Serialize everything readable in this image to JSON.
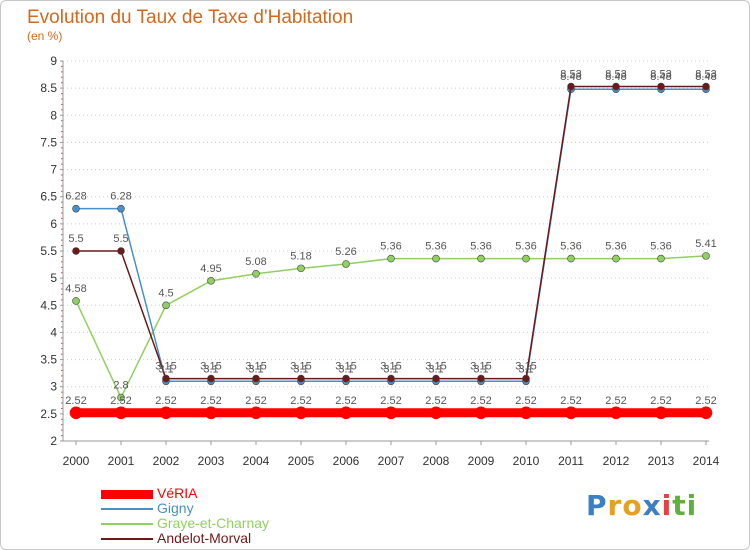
{
  "chart_data": {
    "type": "line",
    "title": "Evolution du Taux de Taxe d'Habitation",
    "subtitle": "(en %)",
    "x": [
      "2000",
      "2001",
      "2002",
      "2003",
      "2004",
      "2005",
      "2006",
      "2007",
      "2008",
      "2009",
      "2010",
      "2011",
      "2012",
      "2013",
      "2014"
    ],
    "ylim": [
      2,
      9
    ],
    "yticks": [
      "2",
      "2.5",
      "3",
      "3.5",
      "4",
      "4.5",
      "5",
      "5.5",
      "6",
      "6.5",
      "7",
      "7.5",
      "8",
      "8.5",
      "9"
    ],
    "grid": "horizontal-dotted",
    "legend_position": "bottom-left",
    "series": [
      {
        "name": "VéRIA",
        "color": "#ff0000",
        "values": [
          2.52,
          2.52,
          2.52,
          2.52,
          2.52,
          2.52,
          2.52,
          2.52,
          2.52,
          2.52,
          2.52,
          2.52,
          2.52,
          2.52,
          2.52
        ],
        "labels": [
          "2.52",
          "2.52",
          "2.52",
          "2.52",
          "2.52",
          "2.52",
          "2.52",
          "2.52",
          "2.52",
          "2.52",
          "2.52",
          "2.52",
          "2.52",
          "2.52",
          "2.52"
        ]
      },
      {
        "name": "Gigny",
        "color": "#4a90c8",
        "values": [
          6.28,
          6.28,
          3.1,
          3.1,
          3.1,
          3.1,
          3.1,
          3.1,
          3.1,
          3.1,
          3.1,
          8.48,
          8.48,
          8.48,
          8.48
        ],
        "labels": [
          "6.28",
          "6.28",
          "3.1",
          "3.1",
          "3.1",
          "3.1",
          "3.1",
          "3.1",
          "3.1",
          "3.1",
          "3.1",
          "8.48",
          "8.48",
          "8.48",
          "8.48"
        ]
      },
      {
        "name": "Graye-et-Charnay",
        "color": "#90d060",
        "values": [
          4.58,
          2.8,
          4.5,
          4.95,
          5.08,
          5.18,
          5.26,
          5.36,
          5.36,
          5.36,
          5.36,
          5.36,
          5.36,
          5.36,
          5.41
        ],
        "labels": [
          "4.58",
          "2.8",
          "4.5",
          "4.95",
          "5.08",
          "5.18",
          "5.26",
          "5.36",
          "5.36",
          "5.36",
          "5.36",
          "5.36",
          "5.36",
          "5.36",
          "5.41"
        ]
      },
      {
        "name": "Andelot-Morval",
        "color": "#6b1a1a",
        "values": [
          5.5,
          5.5,
          3.15,
          3.15,
          3.15,
          3.15,
          3.15,
          3.15,
          3.15,
          3.15,
          3.15,
          8.53,
          8.53,
          8.53,
          8.53
        ],
        "labels": [
          "5.5",
          "5.5",
          "3.15",
          "3.15",
          "3.15",
          "3.15",
          "3.15",
          "3.15",
          "3.15",
          "3.15",
          "3.15",
          "8.53",
          "8.53",
          "8.53",
          "8.53"
        ]
      }
    ]
  },
  "logo": {
    "letters": [
      "P",
      "r",
      "o",
      "x",
      "i",
      "t",
      "i"
    ],
    "colors": [
      "#3b7fc4",
      "#e8a020",
      "#e8a020",
      "#3b7fc4",
      "#e84040",
      "#60b040",
      "#60b040"
    ]
  }
}
